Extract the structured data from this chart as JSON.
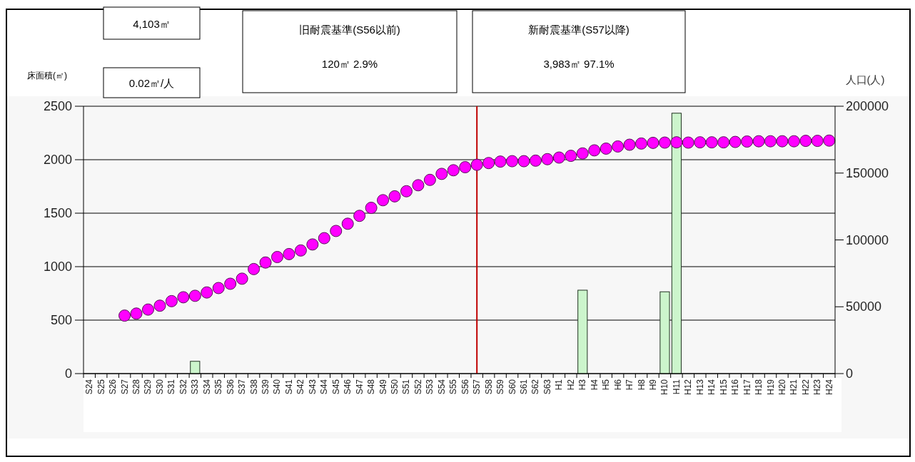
{
  "chart_data": {
    "type": "bar",
    "ylabel": "床面積(㎡)",
    "y2label": "人口(人)",
    "annotations": [
      "4,103㎡",
      "0.02㎡/人",
      "旧耐震基準(S56以前)",
      "120㎡  2.9%",
      "新耐震基準(S57以降)",
      "3,983㎡  97.1%"
    ],
    "categories": [
      "S24",
      "S25",
      "S26",
      "S27",
      "S28",
      "S29",
      "S30",
      "S31",
      "S32",
      "S33",
      "S34",
      "S35",
      "S36",
      "S37",
      "S38",
      "S39",
      "S40",
      "S41",
      "S42",
      "S43",
      "S44",
      "S45",
      "S46",
      "S47",
      "S48",
      "S49",
      "S50",
      "S51",
      "S52",
      "S53",
      "S54",
      "S55",
      "S56",
      "S57",
      "S58",
      "S59",
      "S60",
      "S61",
      "S62",
      "S63",
      "H1",
      "H2",
      "H3",
      "H4",
      "H5",
      "H6",
      "H7",
      "H8",
      "H9",
      "H10",
      "H11",
      "H12",
      "H13",
      "H14",
      "H15",
      "H16",
      "H17",
      "H18",
      "H19",
      "H20",
      "H21",
      "H22",
      "H23",
      "H24"
    ],
    "series": [
      {
        "color": "#ccf5cc",
        "values": [
          null,
          null,
          null,
          null,
          null,
          null,
          null,
          null,
          null,
          115,
          null,
          null,
          null,
          null,
          null,
          null,
          null,
          null,
          null,
          null,
          null,
          null,
          null,
          null,
          null,
          null,
          null,
          null,
          null,
          null,
          null,
          null,
          null,
          null,
          null,
          null,
          null,
          null,
          null,
          null,
          null,
          null,
          780,
          null,
          null,
          null,
          null,
          null,
          null,
          765,
          2435,
          null,
          null,
          null,
          null,
          null,
          null,
          null,
          null,
          null,
          null,
          null,
          null,
          null
        ]
      },
      {
        "type": "scatter",
        "axis": "y2",
        "color": "#ff00ff",
        "values": [
          null,
          null,
          null,
          43400,
          44900,
          47900,
          50800,
          54200,
          57100,
          58200,
          60700,
          64000,
          67200,
          71000,
          78200,
          83100,
          87200,
          89400,
          92100,
          96600,
          101300,
          106700,
          112100,
          118000,
          124000,
          129700,
          132600,
          136400,
          140900,
          144900,
          149400,
          152100,
          154400,
          156200,
          157500,
          158600,
          158900,
          158900,
          159300,
          160400,
          161600,
          162900,
          164700,
          167000,
          168300,
          169900,
          171200,
          172100,
          172600,
          172800,
          173000,
          172800,
          173000,
          173000,
          173000,
          173300,
          173600,
          173800,
          173800,
          173800,
          173800,
          174100,
          174100,
          174300
        ]
      }
    ],
    "ylim": [
      0,
      2500
    ],
    "yticks": [
      0,
      500,
      1000,
      1500,
      2000,
      2500
    ],
    "y2lim": [
      0,
      200000
    ],
    "y2ticks": [
      0,
      50000,
      100000,
      150000,
      200000
    ],
    "grid": "y",
    "marker": "circle",
    "ref_lines": [
      {
        "axis": "x",
        "value": "S57",
        "color": "#c00000"
      }
    ]
  }
}
